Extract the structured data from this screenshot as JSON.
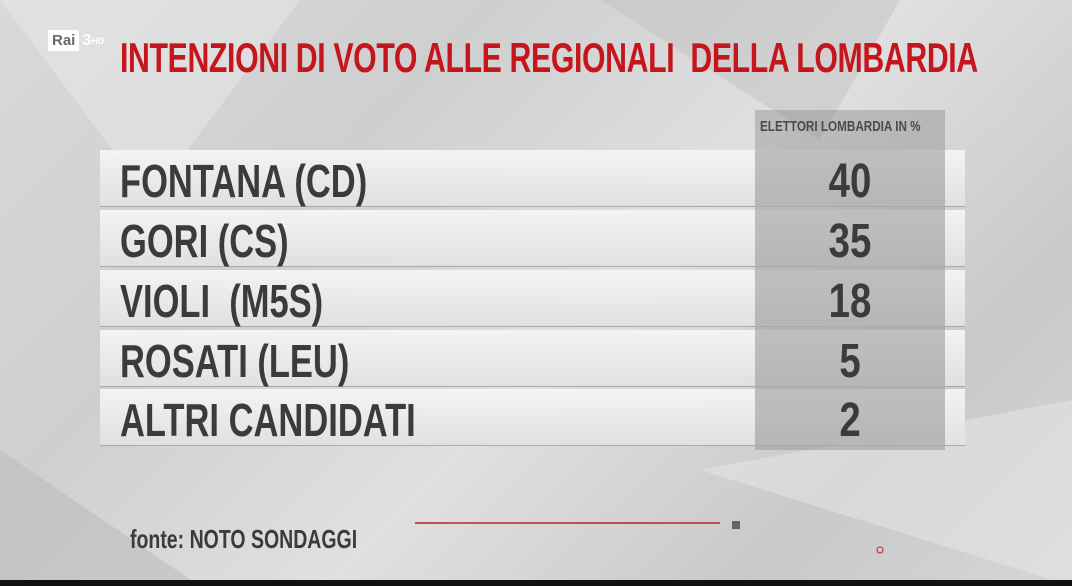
{
  "logo": {
    "brand": "Rai",
    "channel": "3",
    "format": "HD"
  },
  "header": {
    "title": "INTENZIONI DI VOTO ALLE REGIONALI  DELLA LOMBARDIA"
  },
  "table": {
    "column_header": "ELETTORI LOMBARDIA IN %",
    "rows": [
      [
        "FONTANA (CD)",
        "40"
      ],
      [
        "GORI (CS)",
        "35"
      ],
      [
        "VIOLI  (M5S)",
        "18"
      ],
      [
        "ROSATI (LEU)",
        "5"
      ],
      [
        "ALTRI CANDIDATI",
        "2"
      ]
    ]
  },
  "footer": {
    "source": "fonte: NOTO SONDAGGI"
  }
}
